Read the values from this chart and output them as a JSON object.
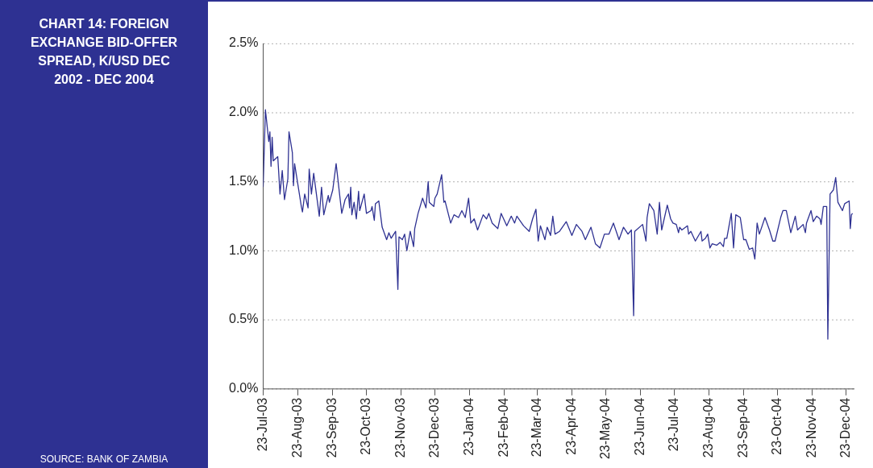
{
  "chart_data": {
    "type": "line",
    "title": "CHART 14: FOREIGN EXCHANGE BID-OFFER SPREAD, K/USD DEC 2002 - DEC 2004",
    "annotations": [
      "SOURCE: BANK OF ZAMBIA"
    ],
    "x": [
      "2003-07-23",
      "2003-07-25",
      "2003-07-28",
      "2003-07-29",
      "2003-07-30",
      "2003-07-31",
      "2003-08-01",
      "2003-08-05",
      "2003-08-07",
      "2003-08-09",
      "2003-08-11",
      "2003-08-14",
      "2003-08-15",
      "2003-08-18",
      "2003-08-19",
      "2003-08-20",
      "2003-08-26",
      "2003-08-27",
      "2003-08-29",
      "2003-09-01",
      "2003-09-02",
      "2003-09-04",
      "2003-09-06",
      "2003-09-11",
      "2003-09-13",
      "2003-09-15",
      "2003-09-19",
      "2003-09-20",
      "2003-09-23",
      "2003-09-26",
      "2003-10-01",
      "2003-10-04",
      "2003-10-07",
      "2003-10-08",
      "2003-10-09",
      "2003-10-10",
      "2003-10-12",
      "2003-10-14",
      "2003-10-16",
      "2003-10-17",
      "2003-10-21",
      "2003-10-23",
      "2003-10-27",
      "2003-10-28",
      "2003-10-30",
      "2003-10-31",
      "2003-11-03",
      "2003-11-06",
      "2003-11-10",
      "2003-11-12",
      "2003-11-14",
      "2003-11-18",
      "2003-11-20",
      "2003-11-21",
      "2003-11-24",
      "2003-11-26",
      "2003-11-28",
      "2003-12-01",
      "2003-12-04",
      "2003-12-05",
      "2003-12-08",
      "2003-12-12",
      "2003-12-15",
      "2003-12-17",
      "2003-12-18",
      "2003-12-22",
      "2003-12-23",
      "2003-12-25",
      "2003-12-29",
      "2003-12-31",
      "2004-01-01",
      "2004-01-06",
      "2004-01-09",
      "2004-01-13",
      "2004-01-16",
      "2004-01-19",
      "2004-01-22",
      "2004-01-24",
      "2004-01-27",
      "2004-01-30",
      "2004-02-04",
      "2004-02-07",
      "2004-02-09",
      "2004-02-12",
      "2004-02-17",
      "2004-02-20",
      "2004-02-25",
      "2004-02-29",
      "2004-03-03",
      "2004-03-05",
      "2004-03-11",
      "2004-03-16",
      "2004-03-19",
      "2004-03-22",
      "2004-03-24",
      "2004-03-26",
      "2004-03-30",
      "2004-04-01",
      "2004-04-04",
      "2004-04-06",
      "2004-04-08",
      "2004-04-12",
      "2004-04-18",
      "2004-04-23",
      "2004-04-27",
      "2004-05-02",
      "2004-05-05",
      "2004-05-10",
      "2004-05-14",
      "2004-05-18",
      "2004-05-22",
      "2004-05-26",
      "2004-05-30",
      "2004-06-04",
      "2004-06-08",
      "2004-06-12",
      "2004-06-15",
      "2004-06-17",
      "2004-06-18",
      "2004-06-25",
      "2004-06-28",
      "2004-06-29",
      "2004-07-01",
      "2004-07-05",
      "2004-07-08",
      "2004-07-10",
      "2004-07-12",
      "2004-07-17",
      "2004-07-20",
      "2004-07-22",
      "2004-07-25",
      "2004-07-27",
      "2004-07-28",
      "2004-07-30",
      "2004-08-04",
      "2004-08-05",
      "2004-08-07",
      "2004-08-11",
      "2004-08-16",
      "2004-08-17",
      "2004-08-20",
      "2004-08-22",
      "2004-08-24",
      "2004-08-26",
      "2004-08-30",
      "2004-09-02",
      "2004-09-05",
      "2004-09-06",
      "2004-09-08",
      "2004-09-12",
      "2004-09-14",
      "2004-09-16",
      "2004-09-20",
      "2004-09-23",
      "2004-09-25",
      "2004-09-28",
      "2004-10-01",
      "2004-10-03",
      "2004-10-05",
      "2004-10-07",
      "2004-10-12",
      "2004-10-16",
      "2004-10-19",
      "2004-10-21",
      "2004-10-26",
      "2004-10-28",
      "2004-10-31",
      "2004-11-04",
      "2004-11-08",
      "2004-11-10",
      "2004-11-15",
      "2004-11-17",
      "2004-11-18",
      "2004-11-22",
      "2004-11-24",
      "2004-11-27",
      "2004-11-30",
      "2004-12-01",
      "2004-12-03",
      "2004-12-06",
      "2004-12-07",
      "2004-12-09",
      "2004-12-12",
      "2004-12-14",
      "2004-12-16",
      "2004-12-20",
      "2004-12-22",
      "2004-12-26",
      "2004-12-27",
      "2004-12-28",
      "2004-12-29"
    ],
    "series": [
      {
        "color": "#2e3192",
        "values": [
          1.46,
          2.02,
          1.79,
          1.86,
          1.61,
          1.82,
          1.65,
          1.68,
          1.41,
          1.58,
          1.37,
          1.52,
          1.86,
          1.71,
          1.47,
          1.63,
          1.32,
          1.28,
          1.41,
          1.31,
          1.59,
          1.41,
          1.56,
          1.25,
          1.46,
          1.26,
          1.4,
          1.35,
          1.44,
          1.63,
          1.27,
          1.37,
          1.41,
          1.31,
          1.46,
          1.26,
          1.35,
          1.23,
          1.43,
          1.29,
          1.41,
          1.27,
          1.29,
          1.32,
          1.22,
          1.34,
          1.36,
          1.17,
          1.08,
          1.13,
          1.09,
          1.14,
          0.72,
          1.1,
          1.08,
          1.12,
          1.0,
          1.14,
          1.03,
          1.16,
          1.27,
          1.38,
          1.31,
          1.5,
          1.35,
          1.32,
          1.38,
          1.41,
          1.55,
          1.35,
          1.36,
          1.2,
          1.26,
          1.24,
          1.29,
          1.24,
          1.38,
          1.2,
          1.23,
          1.15,
          1.26,
          1.23,
          1.27,
          1.2,
          1.16,
          1.27,
          1.18,
          1.25,
          1.2,
          1.25,
          1.18,
          1.14,
          1.23,
          1.3,
          1.07,
          1.18,
          1.08,
          1.17,
          1.11,
          1.25,
          1.12,
          1.14,
          1.21,
          1.11,
          1.19,
          1.14,
          1.08,
          1.17,
          1.05,
          1.02,
          1.12,
          1.12,
          1.2,
          1.08,
          1.17,
          1.12,
          1.15,
          0.53,
          1.14,
          1.19,
          1.07,
          1.24,
          1.34,
          1.29,
          1.12,
          1.35,
          1.15,
          1.33,
          1.23,
          1.2,
          1.19,
          1.13,
          1.17,
          1.15,
          1.18,
          1.12,
          1.14,
          1.07,
          1.14,
          1.07,
          1.09,
          1.12,
          1.02,
          1.05,
          1.04,
          1.06,
          1.03,
          1.09,
          1.09,
          1.27,
          1.02,
          1.26,
          1.24,
          1.08,
          1.08,
          1.01,
          1.02,
          0.94,
          1.2,
          1.12,
          1.24,
          1.15,
          1.07,
          1.07,
          1.24,
          1.29,
          1.29,
          1.13,
          1.25,
          1.15,
          1.19,
          1.13,
          1.2,
          1.29,
          1.21,
          1.25,
          1.23,
          1.19,
          1.32,
          1.32,
          0.36,
          1.41,
          1.44,
          1.53,
          1.35,
          1.29,
          1.34,
          1.36,
          1.16,
          1.26,
          1.27
        ]
      }
    ],
    "xlim": [
      "2003-07-23",
      "2004-12-30"
    ],
    "xticks": [
      {
        "value": "2003-07-23",
        "label": "23-Jul-03"
      },
      {
        "value": "2003-08-23",
        "label": "23-Aug-03"
      },
      {
        "value": "2003-09-23",
        "label": "23-Sep-03"
      },
      {
        "value": "2003-10-23",
        "label": "23-Oct-03"
      },
      {
        "value": "2003-11-23",
        "label": "23-Nov-03"
      },
      {
        "value": "2003-12-23",
        "label": "23-Dec-03"
      },
      {
        "value": "2004-01-23",
        "label": "23-Jan-04"
      },
      {
        "value": "2004-02-23",
        "label": "23-Feb-04"
      },
      {
        "value": "2004-03-23",
        "label": "23-Mar-04"
      },
      {
        "value": "2004-04-23",
        "label": "23-Apr-04"
      },
      {
        "value": "2004-05-23",
        "label": "23-May-04"
      },
      {
        "value": "2004-06-23",
        "label": "23-Jun-04"
      },
      {
        "value": "2004-07-23",
        "label": "23-Jul-04"
      },
      {
        "value": "2004-08-23",
        "label": "23-Aug-04"
      },
      {
        "value": "2004-09-23",
        "label": "23-Sep-04"
      },
      {
        "value": "2004-10-23",
        "label": "23-Oct-04"
      },
      {
        "value": "2004-11-23",
        "label": "23-Nov-04"
      },
      {
        "value": "2004-12-23",
        "label": "23-Dec-04"
      }
    ],
    "ylim": [
      0,
      2.5
    ],
    "yticks": [
      {
        "value": 0,
        "label": "0.0%"
      },
      {
        "value": 0.5,
        "label": "0.5%"
      },
      {
        "value": 1,
        "label": "1.0%"
      },
      {
        "value": 1.5,
        "label": "1.5%"
      },
      {
        "value": 2,
        "label": "2.0%"
      },
      {
        "value": 2.5,
        "label": "2.5%"
      }
    ],
    "grid": "y",
    "legend": false,
    "marker": "none",
    "line_style": "solid"
  }
}
